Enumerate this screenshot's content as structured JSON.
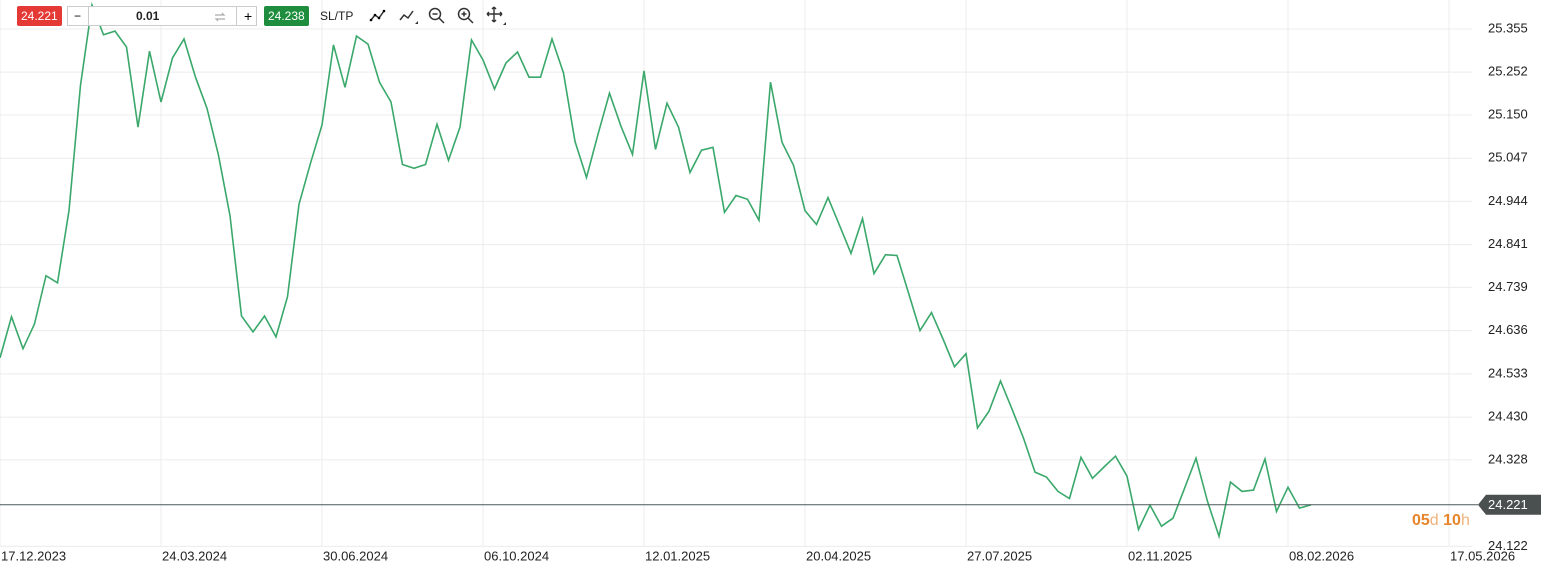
{
  "toolbar": {
    "sell_price": "24.221",
    "minus": "−",
    "quantity": "0.01",
    "plus": "+",
    "buy_price": "24.238",
    "sl_tp": "SL/TP"
  },
  "chart_data": {
    "type": "line",
    "color": "#3aa86b",
    "grid": true,
    "x": [
      "17.12.2023",
      "24.12.2023",
      "31.12.2023",
      "07.01.2024",
      "14.01.2024",
      "21.01.2024",
      "28.01.2024",
      "04.02.2024",
      "11.02.2024",
      "18.02.2024",
      "25.02.2024",
      "03.03.2024",
      "10.03.2024",
      "17.03.2024",
      "24.03.2024",
      "31.03.2024",
      "07.04.2024",
      "14.04.2024",
      "21.04.2024",
      "28.04.2024",
      "05.05.2024",
      "12.05.2024",
      "19.05.2024",
      "26.05.2024",
      "02.06.2024",
      "09.06.2024",
      "16.06.2024",
      "23.06.2024",
      "30.06.2024",
      "07.07.2024",
      "14.07.2024",
      "21.07.2024",
      "28.07.2024",
      "04.08.2024",
      "11.08.2024",
      "18.08.2024",
      "25.08.2024",
      "01.09.2024",
      "08.09.2024",
      "15.09.2024",
      "22.09.2024",
      "29.09.2024",
      "06.10.2024",
      "13.10.2024",
      "20.10.2024",
      "27.10.2024",
      "03.11.2024",
      "10.11.2024",
      "17.11.2024",
      "24.11.2024",
      "01.12.2024",
      "08.12.2024",
      "15.12.2024",
      "22.12.2024",
      "29.12.2024",
      "05.01.2025",
      "12.01.2025",
      "19.01.2025",
      "26.01.2025",
      "02.02.2025",
      "09.02.2025",
      "16.02.2025",
      "23.02.2025",
      "02.03.2025",
      "09.03.2025",
      "16.03.2025",
      "23.03.2025",
      "30.03.2025",
      "06.04.2025",
      "13.04.2025",
      "20.04.2025",
      "27.04.2025",
      "04.05.2025",
      "11.05.2025",
      "18.05.2025",
      "25.05.2025",
      "01.06.2025",
      "08.06.2025",
      "15.06.2025",
      "22.06.2025",
      "29.06.2025",
      "06.07.2025",
      "13.07.2025",
      "20.07.2025",
      "27.07.2025",
      "03.08.2025",
      "10.08.2025",
      "17.08.2025",
      "24.08.2025",
      "31.08.2025",
      "07.09.2025",
      "14.09.2025",
      "21.09.2025",
      "28.09.2025",
      "05.10.2025",
      "12.10.2025",
      "19.10.2025",
      "26.10.2025",
      "02.11.2025",
      "09.11.2025",
      "16.11.2025",
      "23.11.2025",
      "30.11.2025",
      "07.12.2025",
      "14.12.2025",
      "21.12.2025",
      "28.12.2025",
      "04.01.2026",
      "11.01.2026",
      "18.01.2026",
      "25.01.2026",
      "01.02.2026",
      "08.02.2026",
      "15.02.2026",
      "22.02.2026"
    ],
    "values": [
      24.571,
      24.669,
      24.593,
      24.652,
      24.767,
      24.75,
      24.922,
      25.221,
      25.412,
      25.341,
      25.35,
      25.312,
      25.121,
      25.302,
      25.181,
      25.286,
      25.331,
      25.24,
      25.166,
      25.054,
      24.91,
      24.671,
      24.633,
      24.671,
      24.621,
      24.717,
      24.937,
      25.035,
      25.126,
      25.317,
      25.216,
      25.338,
      25.319,
      25.228,
      25.181,
      25.032,
      25.023,
      25.032,
      25.128,
      25.042,
      25.121,
      25.329,
      25.281,
      25.212,
      25.274,
      25.3,
      25.24,
      25.24,
      25.331,
      25.25,
      25.087,
      25.001,
      25.104,
      25.202,
      25.123,
      25.056,
      25.255,
      25.068,
      25.178,
      25.121,
      25.013,
      25.066,
      25.073,
      24.918,
      24.958,
      24.949,
      24.899,
      25.228,
      25.085,
      25.03,
      24.922,
      24.889,
      24.953,
      24.887,
      24.82,
      24.903,
      24.772,
      24.817,
      24.815,
      24.726,
      24.636,
      24.679,
      24.616,
      24.55,
      24.581,
      24.404,
      24.444,
      24.516,
      24.449,
      24.38,
      24.299,
      24.287,
      24.253,
      24.236,
      24.334,
      24.284,
      24.311,
      24.337,
      24.289,
      24.162,
      24.22,
      24.17,
      24.189,
      24.26,
      24.332,
      24.229,
      24.146,
      24.275,
      24.253,
      24.256,
      24.33,
      24.205,
      24.263,
      24.213,
      24.221
    ],
    "xlim": [
      "17.12.2023",
      "31.05.2026"
    ],
    "xticks": [
      "17.12.2023",
      "24.03.2024",
      "30.06.2024",
      "06.10.2024",
      "12.01.2025",
      "20.04.2025",
      "27.07.2025",
      "02.11.2025",
      "08.02.2026",
      "17.05.2026"
    ],
    "ylim": [
      24.118,
      25.424
    ],
    "yticks": [
      25.355,
      25.252,
      {
        "value": 25.15,
        "label": "25.150"
      },
      25.047,
      24.944,
      24.841,
      24.739,
      24.636,
      24.533,
      {
        "value": 24.43,
        "label": "24.430"
      },
      24.328,
      24.122
    ],
    "current_price": 24.221,
    "countdown": {
      "days": "05",
      "days_unit": "d",
      "hours": "10",
      "hours_unit": "h"
    }
  }
}
